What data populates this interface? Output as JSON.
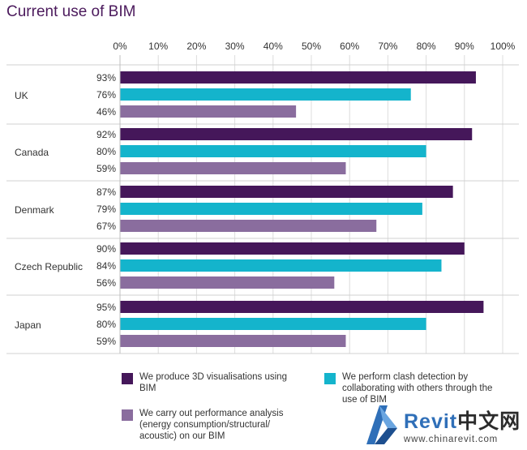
{
  "title": "Current use of BIM",
  "legend": [
    {
      "label": "We produce 3D visualisations using BIM",
      "color": "#45175a"
    },
    {
      "label": "We perform clash detection by collaborating with others through the use of BIM",
      "color": "#14b4cc"
    },
    {
      "label": "We carry out performance analysis (energy consumption/structural/ acoustic) on our BIM",
      "color": "#8a6d9e"
    }
  ],
  "watermark": {
    "brand": "Revit",
    "brand_cn": "中文网",
    "url": "www.chinarevit.com"
  },
  "chart_data": {
    "type": "bar",
    "orientation": "horizontal",
    "title": "Current use of BIM",
    "categories": [
      "UK",
      "Canada",
      "Denmark",
      "Czech Republic",
      "Japan"
    ],
    "series": [
      {
        "name": "We produce 3D visualisations using BIM",
        "values": [
          93,
          92,
          87,
          90,
          95
        ],
        "color": "#45175a"
      },
      {
        "name": "We perform clash detection by collaborating with others through the use of BIM",
        "values": [
          76,
          80,
          79,
          84,
          80
        ],
        "color": "#14b4cc"
      },
      {
        "name": "We carry out performance analysis (energy consumption/structural/ acoustic) on our BIM",
        "values": [
          46,
          59,
          67,
          56,
          59
        ],
        "color": "#8a6d9e"
      }
    ],
    "value_labels": [
      [
        "93%",
        "76%",
        "46%"
      ],
      [
        "92%",
        "80%",
        "59%"
      ],
      [
        "87%",
        "79%",
        "67%"
      ],
      [
        "90%",
        "84%",
        "56%"
      ],
      [
        "95%",
        "80%",
        "59%"
      ]
    ],
    "xticks": [
      "0%",
      "10%",
      "20%",
      "30%",
      "40%",
      "50%",
      "60%",
      "70%",
      "80%",
      "90%",
      "100%"
    ],
    "xlim": [
      0,
      100
    ],
    "grid": true,
    "legend_position": "bottom"
  }
}
